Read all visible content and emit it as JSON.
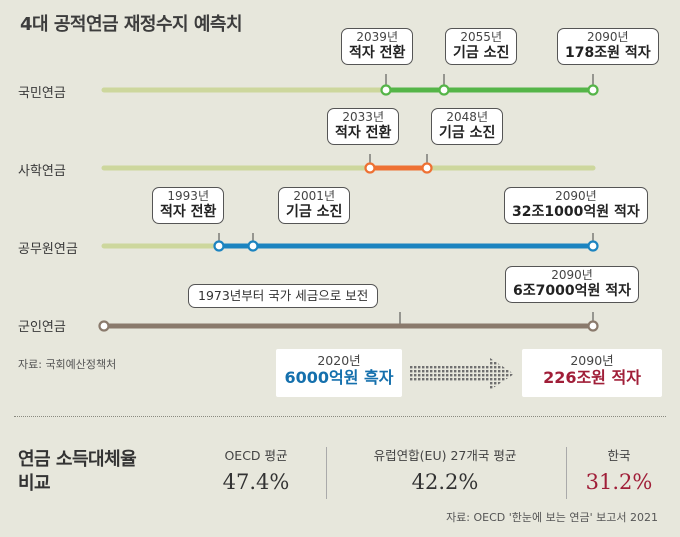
{
  "title": "4대 공적연금 재정수지 예측치",
  "colors": {
    "national": "#55b548",
    "private_school": "#ee7133",
    "civil_servant": "#1c84c0",
    "military": "#8a7a6c",
    "track": "#cdd79d",
    "deficit_red": "#a01e38",
    "surplus_blue": "#1570ad"
  },
  "chart_data": {
    "type": "timeline",
    "title": "4대 공적연금 재정수지 예측치",
    "rows": [
      {
        "key": "national",
        "label": "국민연금",
        "events": [
          {
            "year_label": "2039년",
            "event": "적자 전환"
          },
          {
            "year_label": "2055년",
            "event": "기금 소진"
          },
          {
            "year_label": "2090년",
            "event": "178조원 적자"
          }
        ]
      },
      {
        "key": "private_school",
        "label": "사학연금",
        "events": [
          {
            "year_label": "2033년",
            "event": "적자 전환"
          },
          {
            "year_label": "2048년",
            "event": "기금 소진"
          }
        ]
      },
      {
        "key": "civil_servant",
        "label": "공무원연금",
        "events": [
          {
            "year_label": "1993년",
            "event": "적자 전환"
          },
          {
            "year_label": "2001년",
            "event": "기금 소진"
          },
          {
            "year_label": "2090년",
            "event": "32조1000억원 적자"
          }
        ]
      },
      {
        "key": "military",
        "label": "군인연금",
        "events": [
          {
            "year_label": "",
            "event": "1973년부터 국가 세금으로 보전"
          },
          {
            "year_label": "2090년",
            "event": "6조7000억원 적자"
          }
        ]
      }
    ],
    "summary": {
      "from": {
        "year_label": "2020년",
        "value_label": "6000억원 흑자"
      },
      "to": {
        "year_label": "2090년",
        "value_label": "226조원 적자"
      }
    },
    "source": "자료: 국회예산정책처",
    "replacement_rate": {
      "title_line1": "연금 소득대체율",
      "title_line2": "비교",
      "categories": [
        "OECD 평균",
        "유럽연합(EU) 27개국 평균",
        "한국"
      ],
      "values": [
        47.4,
        42.2,
        31.2
      ],
      "value_labels": [
        "47.4%",
        "42.2%",
        "31.2%"
      ],
      "unit": "%",
      "source": "자료: OECD '한눈에 보는 연금' 보고서 2021"
    }
  }
}
